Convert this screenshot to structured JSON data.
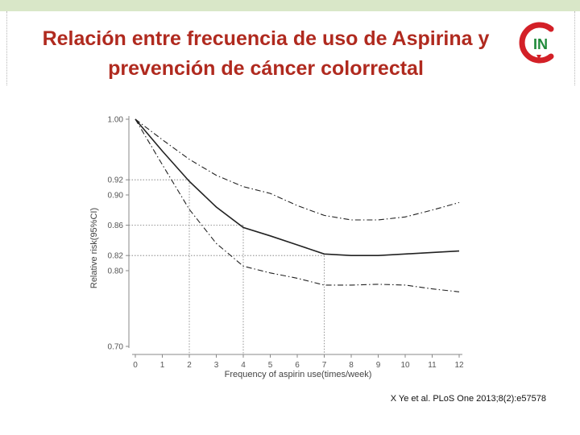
{
  "slide": {
    "title_line1": "Relación entre frecuencia de uso de Aspirina y",
    "title_line2": "prevención de cáncer colorrectal",
    "citation": "X Ye et al. PLoS One 2013;8(2):e57578",
    "title_color": "#b02a1f"
  },
  "logo": {
    "icon": "cin-logo",
    "text": "IN",
    "colors": {
      "ring": "#d32027",
      "text": "#1f8a3a"
    }
  },
  "chart_data": {
    "type": "line",
    "xlabel": "Frequency of aspirin use(times/week)",
    "ylabel": "Relative risk(95%CI)",
    "x_ticks": [
      0,
      1,
      2,
      3,
      4,
      5,
      6,
      7,
      8,
      9,
      10,
      11,
      12
    ],
    "y_ticks": [
      "1.00",
      "0.92",
      "0.90",
      "0.86",
      "0.82",
      "0.80",
      "0.70"
    ],
    "xlim": [
      0,
      12
    ],
    "ylim": [
      0.7,
      1.0
    ],
    "grid": false,
    "reference_lines": [
      {
        "x": 2,
        "y": 0.92
      },
      {
        "x": 4,
        "y": 0.86
      },
      {
        "x": 7,
        "y": 0.82
      }
    ],
    "series": [
      {
        "role": "estimate",
        "style": "solid",
        "x": [
          0,
          1,
          2,
          3,
          4,
          5,
          6,
          7,
          8,
          9,
          10,
          11,
          12
        ],
        "y": [
          1.0,
          0.958,
          0.918,
          0.884,
          0.857,
          0.846,
          0.834,
          0.822,
          0.82,
          0.82,
          0.822,
          0.824,
          0.826
        ]
      },
      {
        "role": "upper",
        "style": "dashdot",
        "x": [
          0,
          1,
          2,
          3,
          4,
          5,
          6,
          7,
          8,
          9,
          10,
          11,
          12
        ],
        "y": [
          1.0,
          0.973,
          0.947,
          0.926,
          0.911,
          0.902,
          0.886,
          0.873,
          0.867,
          0.867,
          0.871,
          0.88,
          0.89
        ]
      },
      {
        "role": "lower",
        "style": "dashdot",
        "x": [
          0,
          1,
          2,
          3,
          4,
          5,
          6,
          7,
          8,
          9,
          10,
          11,
          12
        ],
        "y": [
          1.0,
          0.94,
          0.881,
          0.836,
          0.806,
          0.797,
          0.79,
          0.781,
          0.781,
          0.782,
          0.781,
          0.776,
          0.772
        ]
      }
    ]
  }
}
